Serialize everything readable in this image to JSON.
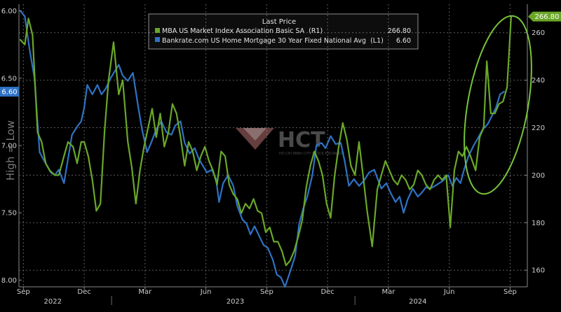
{
  "chart_data": {
    "type": "line",
    "legend": {
      "title": "Last Price",
      "placement": "top-center",
      "entries": [
        {
          "name": "MBA US Market Index Association Basic SA  (R1)",
          "value": "266.80",
          "color": "#6aa728"
        },
        {
          "name": "Bankrate.com US Home Mortgage 30 Year Fixed National Avg  (L1)",
          "value": "6.60",
          "color": "#2f72c4"
        }
      ]
    },
    "left_axis": {
      "title": "High = Low",
      "range": [
        8.05,
        5.95
      ],
      "inverted": true,
      "ticks": [
        "6.00",
        "6.50",
        "7.00",
        "7.50",
        "8.00"
      ],
      "tick_values": [
        6.0,
        6.5,
        7.0,
        7.5,
        8.0
      ]
    },
    "right_axis": {
      "range": [
        153,
        272
      ],
      "ticks": [
        "160",
        "180",
        "200",
        "220",
        "240",
        "260"
      ],
      "tick_values": [
        160,
        180,
        200,
        220,
        240,
        260
      ]
    },
    "x_axis": {
      "range": [
        0,
        25
      ],
      "month_ticks": [
        {
          "label": "Sep",
          "pos": 0.15
        },
        {
          "label": "Dec",
          "pos": 3.15
        },
        {
          "label": "Mar",
          "pos": 6.15
        },
        {
          "label": "Jun",
          "pos": 9.15
        },
        {
          "label": "Sep",
          "pos": 12.15
        },
        {
          "label": "Dec",
          "pos": 15.15
        },
        {
          "label": "Mar",
          "pos": 18.15
        },
        {
          "label": "Jun",
          "pos": 21.15
        },
        {
          "label": "Sep",
          "pos": 24.15
        }
      ],
      "year_labels": [
        {
          "label": "2022",
          "pos": 1.6
        },
        {
          "label": "2023",
          "pos": 10.6
        },
        {
          "label": "2024",
          "pos": 19.6
        }
      ],
      "year_dividers": [
        4.5,
        16.5
      ]
    },
    "grid": true,
    "last_value_badges": [
      {
        "side": "left",
        "text": "6.60",
        "value": 6.6,
        "color": "#2f72c4"
      },
      {
        "side": "right",
        "text": "266.80",
        "value": 266.8,
        "color": "#6aa728"
      }
    ],
    "series": [
      {
        "name": "Bankrate.com US Home Mortgage 30 Year Fixed National Avg",
        "axis": "left",
        "color": "#2f72c4",
        "values": [
          [
            0.0,
            6.0
          ],
          [
            0.22,
            6.04
          ],
          [
            0.45,
            6.28
          ],
          [
            0.7,
            6.5
          ],
          [
            0.95,
            7.05
          ],
          [
            1.2,
            7.12
          ],
          [
            1.5,
            7.2
          ],
          [
            1.7,
            7.22
          ],
          [
            1.9,
            7.18
          ],
          [
            2.15,
            7.28
          ],
          [
            2.35,
            7.1
          ],
          [
            2.55,
            6.92
          ],
          [
            2.8,
            6.86
          ],
          [
            3.0,
            6.82
          ],
          [
            3.15,
            6.72
          ],
          [
            3.3,
            6.55
          ],
          [
            3.55,
            6.62
          ],
          [
            3.8,
            6.55
          ],
          [
            4.0,
            6.62
          ],
          [
            4.2,
            6.58
          ],
          [
            4.45,
            6.5
          ],
          [
            4.65,
            6.45
          ],
          [
            4.85,
            6.4
          ],
          [
            5.05,
            6.48
          ],
          [
            5.3,
            6.52
          ],
          [
            5.55,
            6.46
          ],
          [
            5.8,
            6.7
          ],
          [
            6.0,
            6.88
          ],
          [
            6.25,
            7.05
          ],
          [
            6.45,
            6.98
          ],
          [
            6.7,
            6.88
          ],
          [
            6.95,
            6.82
          ],
          [
            7.2,
            6.9
          ],
          [
            7.45,
            6.92
          ],
          [
            7.65,
            6.85
          ],
          [
            7.9,
            6.82
          ],
          [
            8.1,
            6.98
          ],
          [
            8.35,
            7.06
          ],
          [
            8.6,
            7.02
          ],
          [
            8.8,
            7.1
          ],
          [
            9.0,
            7.15
          ],
          [
            9.2,
            7.2
          ],
          [
            9.45,
            7.18
          ],
          [
            9.65,
            7.25
          ],
          [
            9.8,
            7.42
          ],
          [
            10.0,
            7.28
          ],
          [
            10.25,
            7.22
          ],
          [
            10.5,
            7.3
          ],
          [
            10.7,
            7.45
          ],
          [
            10.95,
            7.55
          ],
          [
            11.15,
            7.58
          ],
          [
            11.35,
            7.66
          ],
          [
            11.55,
            7.6
          ],
          [
            11.8,
            7.68
          ],
          [
            12.0,
            7.74
          ],
          [
            12.2,
            7.76
          ],
          [
            12.45,
            7.85
          ],
          [
            12.65,
            7.96
          ],
          [
            12.85,
            7.98
          ],
          [
            13.05,
            8.05
          ],
          [
            13.3,
            7.94
          ],
          [
            13.55,
            7.82
          ],
          [
            13.75,
            7.58
          ],
          [
            13.95,
            7.47
          ],
          [
            14.15,
            7.38
          ],
          [
            14.4,
            7.22
          ],
          [
            14.6,
            7.0
          ],
          [
            14.85,
            6.98
          ],
          [
            15.05,
            7.02
          ],
          [
            15.3,
            6.93
          ],
          [
            15.55,
            6.99
          ],
          [
            15.8,
            6.98
          ],
          [
            16.0,
            7.12
          ],
          [
            16.2,
            7.3
          ],
          [
            16.45,
            7.25
          ],
          [
            16.7,
            7.3
          ],
          [
            16.95,
            7.26
          ],
          [
            17.2,
            7.2
          ],
          [
            17.45,
            7.18
          ],
          [
            17.6,
            7.24
          ],
          [
            17.8,
            7.32
          ],
          [
            18.05,
            7.28
          ],
          [
            18.25,
            7.35
          ],
          [
            18.5,
            7.42
          ],
          [
            18.7,
            7.38
          ],
          [
            18.9,
            7.5
          ],
          [
            19.1,
            7.4
          ],
          [
            19.35,
            7.32
          ],
          [
            19.6,
            7.38
          ],
          [
            19.8,
            7.35
          ],
          [
            20.0,
            7.31
          ],
          [
            20.2,
            7.32
          ],
          [
            20.45,
            7.3
          ],
          [
            20.65,
            7.28
          ],
          [
            20.85,
            7.26
          ],
          [
            21.1,
            7.22
          ],
          [
            21.3,
            7.3
          ],
          [
            21.5,
            7.24
          ],
          [
            21.7,
            7.28
          ],
          [
            21.9,
            7.17
          ],
          [
            22.1,
            7.08
          ],
          [
            22.35,
            7.0
          ],
          [
            22.55,
            6.95
          ],
          [
            22.8,
            6.88
          ],
          [
            23.05,
            6.84
          ],
          [
            23.25,
            6.78
          ],
          [
            23.45,
            6.72
          ],
          [
            23.65,
            6.62
          ],
          [
            23.85,
            6.6
          ]
        ]
      },
      {
        "name": "MBA US Market Index Association Basic SA",
        "axis": "right",
        "color": "#6aa728",
        "values": [
          [
            0.0,
            257
          ],
          [
            0.22,
            255
          ],
          [
            0.4,
            266
          ],
          [
            0.6,
            259
          ],
          [
            0.85,
            218
          ],
          [
            1.05,
            214
          ],
          [
            1.25,
            205
          ],
          [
            1.45,
            202
          ],
          [
            1.7,
            200
          ],
          [
            1.9,
            200
          ],
          [
            2.15,
            208
          ],
          [
            2.35,
            214
          ],
          [
            2.6,
            212
          ],
          [
            2.8,
            205
          ],
          [
            3.0,
            214
          ],
          [
            3.15,
            214
          ],
          [
            3.35,
            208
          ],
          [
            3.55,
            198
          ],
          [
            3.75,
            185
          ],
          [
            3.95,
            188
          ],
          [
            4.15,
            218
          ],
          [
            4.35,
            240
          ],
          [
            4.6,
            256
          ],
          [
            4.85,
            234
          ],
          [
            5.05,
            240
          ],
          [
            5.3,
            214
          ],
          [
            5.5,
            203
          ],
          [
            5.7,
            188
          ],
          [
            5.9,
            202
          ],
          [
            6.1,
            212
          ],
          [
            6.3,
            220
          ],
          [
            6.5,
            228
          ],
          [
            6.7,
            216
          ],
          [
            6.9,
            226
          ],
          [
            7.1,
            212
          ],
          [
            7.3,
            218
          ],
          [
            7.5,
            230
          ],
          [
            7.7,
            226
          ],
          [
            7.9,
            216
          ],
          [
            8.1,
            204
          ],
          [
            8.3,
            214
          ],
          [
            8.5,
            210
          ],
          [
            8.7,
            202
          ],
          [
            8.9,
            208
          ],
          [
            9.1,
            212
          ],
          [
            9.3,
            206
          ],
          [
            9.5,
            202
          ],
          [
            9.7,
            196
          ],
          [
            9.9,
            210
          ],
          [
            10.1,
            208
          ],
          [
            10.3,
            196
          ],
          [
            10.5,
            192
          ],
          [
            10.7,
            190
          ],
          [
            10.9,
            184
          ],
          [
            11.1,
            188
          ],
          [
            11.3,
            186
          ],
          [
            11.5,
            190
          ],
          [
            11.7,
            185
          ],
          [
            11.9,
            184
          ],
          [
            12.1,
            176
          ],
          [
            12.3,
            178
          ],
          [
            12.5,
            172
          ],
          [
            12.7,
            172
          ],
          [
            12.9,
            168
          ],
          [
            13.1,
            162
          ],
          [
            13.3,
            164
          ],
          [
            13.5,
            168
          ],
          [
            13.7,
            174
          ],
          [
            13.9,
            181
          ],
          [
            14.1,
            195
          ],
          [
            14.3,
            204
          ],
          [
            14.5,
            210
          ],
          [
            14.7,
            206
          ],
          [
            14.9,
            200
          ],
          [
            15.1,
            188
          ],
          [
            15.3,
            182
          ],
          [
            15.5,
            200
          ],
          [
            15.7,
            212
          ],
          [
            15.9,
            222
          ],
          [
            16.1,
            215
          ],
          [
            16.3,
            204
          ],
          [
            16.5,
            200
          ],
          [
            16.7,
            214
          ],
          [
            16.9,
            200
          ],
          [
            17.1,
            185
          ],
          [
            17.35,
            170
          ],
          [
            17.6,
            194
          ],
          [
            17.8,
            200
          ],
          [
            18.0,
            206
          ],
          [
            18.2,
            202
          ],
          [
            18.4,
            198
          ],
          [
            18.6,
            196
          ],
          [
            18.8,
            200
          ],
          [
            19.0,
            198
          ],
          [
            19.2,
            194
          ],
          [
            19.4,
            196
          ],
          [
            19.6,
            202
          ],
          [
            19.8,
            200
          ],
          [
            20.0,
            196
          ],
          [
            20.2,
            194
          ],
          [
            20.4,
            198
          ],
          [
            20.6,
            200
          ],
          [
            20.8,
            198
          ],
          [
            21.0,
            200
          ],
          [
            21.2,
            178
          ],
          [
            21.4,
            202
          ],
          [
            21.6,
            210
          ],
          [
            21.8,
            208
          ],
          [
            22.0,
            212
          ],
          [
            22.2,
            208
          ],
          [
            22.45,
            202
          ],
          [
            22.65,
            216
          ],
          [
            22.85,
            220
          ],
          [
            23.0,
            248
          ],
          [
            23.2,
            226
          ],
          [
            23.4,
            226
          ],
          [
            23.6,
            230
          ],
          [
            23.8,
            231
          ],
          [
            24.0,
            237
          ],
          [
            24.2,
            266.8
          ]
        ]
      }
    ]
  },
  "watermark": {
    "text": "HCT",
    "subtext": "HO CHI MINH CITY STOCK EXCHANGE"
  }
}
